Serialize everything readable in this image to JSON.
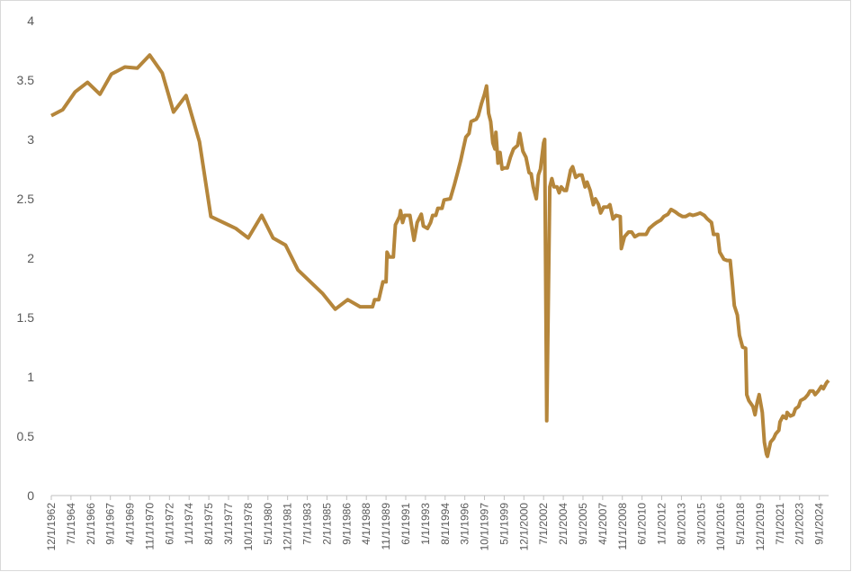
{
  "chart_data": {
    "type": "line",
    "color": "#b5863b",
    "grid": false,
    "xlim": [
      "12/1/1962",
      "6/1/2025"
    ],
    "xticks": [
      "12/1/1962",
      "7/1/1964",
      "2/1/1966",
      "9/1/1967",
      "4/1/1969",
      "11/1/1970",
      "6/1/1972",
      "1/1/1974",
      "8/1/1975",
      "3/1/1977",
      "10/1/1978",
      "5/1/1980",
      "12/1/1981",
      "7/1/1983",
      "2/1/1985",
      "9/1/1986",
      "4/1/1988",
      "11/1/1989",
      "6/1/1991",
      "1/1/1993",
      "8/1/1994",
      "3/1/1996",
      "10/1/1997",
      "5/1/1999",
      "12/1/2000",
      "7/1/2002",
      "2/1/2004",
      "9/1/2005",
      "4/1/2007",
      "11/1/2008",
      "6/1/2010",
      "1/1/2012",
      "8/1/2013",
      "3/1/2015",
      "10/1/2016",
      "5/1/2018",
      "12/1/2019",
      "7/1/2021",
      "2/1/2023",
      "9/1/2024"
    ],
    "ylim": [
      0,
      4
    ],
    "yticks": [
      0,
      0.5,
      1,
      1.5,
      2,
      2.5,
      3,
      3.5,
      4
    ],
    "x": [
      "12/1/1962",
      "11/1/1963",
      "11/1/1964",
      "11/1/1965",
      "11/1/1966",
      "10/1/1967",
      "11/1/1968",
      "11/1/1969",
      "11/1/1970",
      "11/1/1971",
      "10/1/1972",
      "10/1/1973",
      "11/1/1974",
      "10/1/1975",
      "10/1/1977",
      "10/1/1978",
      "11/1/1979",
      "10/1/1980",
      "10/1/1981",
      "10/1/1982",
      "10/1/1984",
      "10/1/1985",
      "10/1/1986",
      "10/1/1987",
      "10/1/1988",
      "12/1/1988",
      "4/1/1989",
      "8/1/1989",
      "11/1/1989",
      "12/1/1989",
      "2/1/1990",
      "6/1/1990",
      "8/1/1990",
      "12/1/1990",
      "1/1/1991",
      "3/1/1991",
      "5/1/1991",
      "10/1/1991",
      "2/1/1992",
      "5/1/1992",
      "9/1/1992",
      "11/1/1992",
      "3/1/1993",
      "6/1/1993",
      "8/1/1993",
      "11/1/1993",
      "1/1/1994",
      "5/1/1994",
      "7/1/1994",
      "1/1/1995",
      "5/1/1995",
      "8/1/1995",
      "11/1/1995",
      "1/1/1996",
      "4/1/1996",
      "7/1/1996",
      "9/1/1996",
      "2/1/1997",
      "4/1/1997",
      "7/1/1997",
      "10/1/1997",
      "12/1/1997",
      "2/1/1998",
      "4/1/1998",
      "6/1/1998",
      "8/1/1998",
      "9/1/1998",
      "11/1/1998",
      "1/1/1999",
      "3/1/1999",
      "5/1/1999",
      "8/1/1999",
      "11/1/1999",
      "2/1/2000",
      "6/1/2000",
      "8/1/2000",
      "11/1/2000",
      "2/1/2001",
      "5/1/2001",
      "7/1/2001",
      "9/1/2001",
      "12/1/2001",
      "2/1/2002",
      "4/1/2002",
      "7/1/2002",
      "8/1/2002",
      "10/1/2002",
      "1/1/2003",
      "3/1/2003",
      "5/1/2003",
      "8/1/2003",
      "10/1/2003",
      "12/1/2003",
      "3/1/2004",
      "5/1/2004",
      "7/1/2004",
      "9/1/2004",
      "11/1/2004",
      "2/1/2005",
      "5/1/2005",
      "8/1/2005",
      "11/1/2005",
      "1/1/2006",
      "4/1/2006",
      "7/1/2006",
      "9/1/2006",
      "12/1/2006",
      "2/1/2007",
      "5/1/2007",
      "9/1/2007",
      "11/1/2007",
      "2/1/2008",
      "5/1/2008",
      "9/1/2008",
      "10/1/2008",
      "1/1/2009",
      "5/1/2009",
      "8/1/2009",
      "11/1/2009",
      "3/1/2010",
      "6/1/2010",
      "10/1/2010",
      "1/1/2011",
      "5/1/2011",
      "8/1/2011",
      "12/1/2011",
      "3/1/2012",
      "7/1/2012",
      "10/1/2012",
      "2/1/2013",
      "5/1/2013",
      "9/1/2013",
      "12/1/2013",
      "4/1/2014",
      "7/1/2014",
      "11/1/2014",
      "2/1/2015",
      "6/1/2015",
      "9/1/2015",
      "1/1/2016",
      "3/1/2016",
      "7/1/2016",
      "9/1/2016",
      "1/1/2017",
      "4/1/2017",
      "7/1/2017",
      "9/1/2017",
      "11/1/2017",
      "2/1/2018",
      "4/1/2018",
      "7/1/2018",
      "10/1/2018",
      "11/1/2018",
      "1/1/2019",
      "5/1/2019",
      "7/1/2019",
      "9/1/2019",
      "11/1/2019",
      "2/1/2020",
      "4/1/2020",
      "6/1/2020",
      "7/1/2020",
      "10/1/2020",
      "1/1/2021",
      "3/1/2021",
      "6/1/2021",
      "7/1/2021",
      "10/1/2021",
      "1/1/2022",
      "2/1/2022",
      "5/1/2022",
      "8/1/2022",
      "10/1/2022",
      "1/1/2023",
      "3/1/2023",
      "7/1/2023",
      "10/1/2023",
      "12/1/2023",
      "3/1/2024",
      "5/1/2024",
      "8/1/2024",
      "11/1/2024",
      "1/1/2025",
      "4/1/2025",
      "6/1/2025"
    ],
    "values": [
      3.2,
      3.25,
      3.4,
      3.48,
      3.38,
      3.55,
      3.61,
      3.6,
      3.71,
      3.56,
      3.23,
      3.37,
      2.98,
      2.35,
      2.25,
      2.17,
      2.36,
      2.17,
      2.11,
      1.9,
      1.7,
      1.57,
      1.65,
      1.59,
      1.59,
      1.65,
      1.65,
      1.8,
      1.8,
      2.05,
      2.01,
      2.01,
      2.28,
      2.35,
      2.4,
      2.3,
      2.36,
      2.36,
      2.15,
      2.3,
      2.37,
      2.27,
      2.25,
      2.3,
      2.36,
      2.36,
      2.42,
      2.42,
      2.49,
      2.5,
      2.62,
      2.72,
      2.82,
      2.9,
      3.02,
      3.05,
      3.15,
      3.17,
      3.2,
      3.3,
      3.38,
      3.45,
      3.22,
      3.15,
      2.97,
      2.92,
      3.06,
      2.8,
      2.89,
      2.75,
      2.76,
      2.76,
      2.85,
      2.92,
      2.95,
      3.05,
      2.9,
      2.85,
      2.72,
      2.71,
      2.6,
      2.5,
      2.7,
      2.75,
      2.97,
      3.0,
      0.63,
      2.6,
      2.67,
      2.6,
      2.6,
      2.55,
      2.6,
      2.57,
      2.57,
      2.65,
      2.74,
      2.77,
      2.68,
      2.7,
      2.7,
      2.6,
      2.64,
      2.57,
      2.45,
      2.5,
      2.45,
      2.38,
      2.43,
      2.43,
      2.45,
      2.33,
      2.36,
      2.35,
      2.08,
      2.18,
      2.22,
      2.22,
      2.18,
      2.2,
      2.2,
      2.2,
      2.25,
      2.28,
      2.3,
      2.32,
      2.35,
      2.37,
      2.41,
      2.39,
      2.37,
      2.35,
      2.35,
      2.37,
      2.36,
      2.37,
      2.38,
      2.36,
      2.33,
      2.3,
      2.2,
      2.2,
      2.05,
      1.99,
      1.98,
      1.98,
      1.8,
      1.6,
      1.52,
      1.35,
      1.25,
      1.24,
      0.85,
      0.8,
      0.75,
      0.68,
      0.78,
      0.85,
      0.7,
      0.45,
      0.35,
      0.33,
      0.45,
      0.48,
      0.52,
      0.55,
      0.62,
      0.67,
      0.65,
      0.7,
      0.67,
      0.68,
      0.73,
      0.75,
      0.8,
      0.82,
      0.85,
      0.88,
      0.88,
      0.85,
      0.88,
      0.92,
      0.9,
      0.95,
      0.97
    ]
  }
}
